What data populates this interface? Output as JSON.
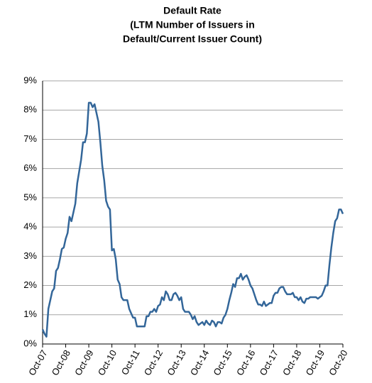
{
  "chart_data": {
    "type": "line",
    "title": [
      "Default Rate",
      "(LTM Number of Issuers in",
      "Default/Current Issuer Count)"
    ],
    "categories": [
      "Oct-07",
      null,
      null,
      null,
      null,
      null,
      null,
      null,
      null,
      null,
      null,
      null,
      "Oct-08",
      null,
      null,
      null,
      null,
      null,
      null,
      null,
      null,
      null,
      null,
      null,
      "Oct-09",
      null,
      null,
      null,
      null,
      null,
      null,
      null,
      null,
      null,
      null,
      null,
      "Oct-10",
      null,
      null,
      null,
      null,
      null,
      null,
      null,
      null,
      null,
      null,
      null,
      "Oct-11",
      null,
      null,
      null,
      null,
      null,
      null,
      null,
      null,
      null,
      null,
      null,
      "Oct-12",
      null,
      null,
      null,
      null,
      null,
      null,
      null,
      null,
      null,
      null,
      null,
      "Oct-13",
      null,
      null,
      null,
      null,
      null,
      null,
      null,
      null,
      null,
      null,
      null,
      "Oct-14",
      null,
      null,
      null,
      null,
      null,
      null,
      null,
      null,
      null,
      null,
      null,
      "Oct-15",
      null,
      null,
      null,
      null,
      null,
      null,
      null,
      null,
      null,
      null,
      null,
      "Oct-16",
      null,
      null,
      null,
      null,
      null,
      null,
      null,
      null,
      null,
      null,
      null,
      "Oct-17",
      null,
      null,
      null,
      null,
      null,
      null,
      null,
      null,
      null,
      null,
      null,
      "Oct-18",
      null,
      null,
      null,
      null,
      null,
      null,
      null,
      null,
      null,
      null,
      null,
      "Oct-19",
      null,
      null,
      null,
      null,
      null,
      null,
      null,
      null,
      null,
      null,
      null,
      "Oct-20"
    ],
    "values": [
      0.5,
      0.35,
      0.25,
      1.2,
      1.5,
      1.8,
      1.9,
      2.5,
      2.6,
      2.9,
      3.25,
      3.3,
      3.6,
      3.8,
      4.35,
      4.2,
      4.5,
      4.8,
      5.5,
      5.9,
      6.3,
      6.9,
      6.9,
      7.2,
      8.25,
      8.25,
      8.1,
      8.2,
      7.9,
      7.6,
      6.9,
      6.1,
      5.6,
      4.9,
      4.7,
      4.6,
      3.2,
      3.25,
      2.9,
      2.2,
      2.05,
      1.6,
      1.5,
      1.5,
      1.5,
      1.2,
      1.05,
      0.9,
      0.9,
      0.6,
      0.6,
      0.6,
      0.6,
      0.6,
      0.95,
      0.95,
      1.1,
      1.1,
      1.2,
      1.1,
      1.3,
      1.35,
      1.6,
      1.5,
      1.8,
      1.7,
      1.5,
      1.5,
      1.7,
      1.75,
      1.65,
      1.5,
      1.6,
      1.2,
      1.1,
      1.1,
      1.1,
      1.0,
      0.85,
      0.95,
      0.75,
      0.65,
      0.7,
      0.75,
      0.65,
      0.8,
      0.7,
      0.65,
      0.8,
      0.75,
      0.6,
      0.75,
      0.75,
      0.7,
      0.9,
      1.0,
      1.2,
      1.5,
      1.75,
      2.05,
      1.95,
      2.25,
      2.25,
      2.4,
      2.2,
      2.3,
      2.35,
      2.2,
      2.0,
      1.9,
      1.7,
      1.5,
      1.35,
      1.35,
      1.3,
      1.45,
      1.3,
      1.35,
      1.4,
      1.4,
      1.65,
      1.75,
      1.75,
      1.9,
      1.95,
      1.95,
      1.8,
      1.7,
      1.7,
      1.7,
      1.75,
      1.6,
      1.6,
      1.5,
      1.6,
      1.45,
      1.4,
      1.55,
      1.55,
      1.6,
      1.6,
      1.6,
      1.6,
      1.55,
      1.6,
      1.65,
      1.8,
      2.0,
      2.0,
      2.7,
      3.3,
      3.8,
      4.2,
      4.3,
      4.6,
      4.6,
      4.45
    ],
    "color": "#336699",
    "ylim": [
      0,
      9
    ],
    "yticks": [
      {
        "value": 0,
        "label": "0%"
      },
      {
        "value": 1,
        "label": "1%"
      },
      {
        "value": 2,
        "label": "2%"
      },
      {
        "value": 3,
        "label": "3%"
      },
      {
        "value": 4,
        "label": "4%"
      },
      {
        "value": 5,
        "label": "5%"
      },
      {
        "value": 6,
        "label": "6%"
      },
      {
        "value": 7,
        "label": "7%"
      },
      {
        "value": 8,
        "label": "8%"
      },
      {
        "value": 9,
        "label": "9%"
      }
    ],
    "grid": true
  }
}
